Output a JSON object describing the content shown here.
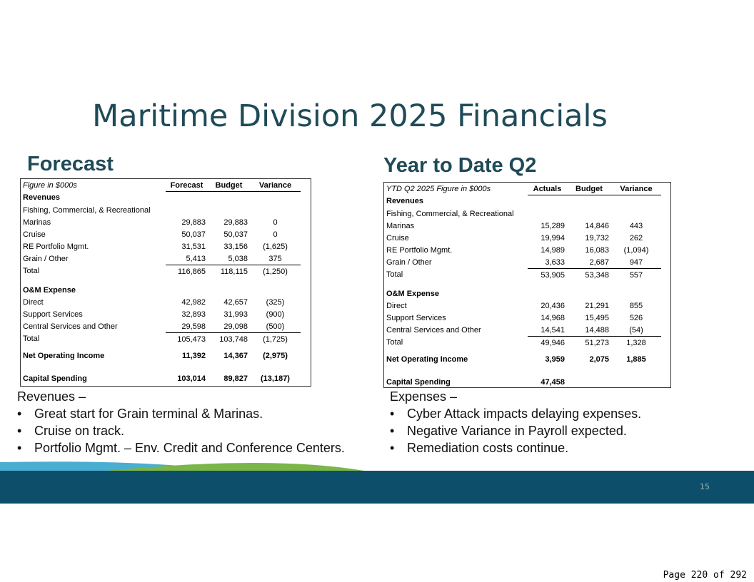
{
  "title": "Maritime Division 2025 Financials",
  "forecast": {
    "heading": "Forecast",
    "table": {
      "rows": [
        [
          "Figure in $000s",
          "Forecast",
          "Budget",
          "Variance"
        ],
        [
          "Revenues"
        ],
        [
          "Fishing, Commercial,  & Recreational"
        ],
        [
          "Marinas",
          "29,883",
          "29,883",
          "0"
        ],
        [
          "Cruise",
          "50,037",
          "50,037",
          "0"
        ],
        [
          "RE Portfolio Mgmt.",
          "31,531",
          "33,156",
          "(1,625)"
        ],
        [
          "Grain / Other",
          "5,413",
          "5,038",
          "375"
        ],
        [
          "Total",
          "116,865",
          "118,115",
          "(1,250)"
        ],
        [
          "O&M Expense"
        ],
        [
          "Direct",
          "42,982",
          "42,657",
          "(325)"
        ],
        [
          "Support Services",
          "32,893",
          "31,993",
          "(900)"
        ],
        [
          "Central Services and Other",
          "29,598",
          "29,098",
          "(500)"
        ],
        [
          "Total",
          "105,473",
          "103,748",
          "(1,725)"
        ],
        [
          "Net Operating Income",
          "11,392",
          "14,367",
          "(2,975)"
        ],
        [
          "Capital Spending",
          "103,014",
          "89,827",
          "(13,187)"
        ]
      ]
    }
  },
  "ytd": {
    "heading": "Year to Date Q2",
    "table": {
      "rows": [
        [
          "YTD Q2 2025 Figure in $000s",
          "Actuals",
          "Budget",
          "Variance"
        ],
        [
          "Revenues"
        ],
        [
          "Fishing, Commercial,  & Recreational"
        ],
        [
          "Marinas",
          "15,289",
          "14,846",
          "443"
        ],
        [
          "Cruise",
          "19,994",
          "19,732",
          "262"
        ],
        [
          "RE Portfolio Mgmt.",
          "14,989",
          "16,083",
          "(1,094)"
        ],
        [
          "Grain / Other",
          "3,633",
          "2,687",
          "947"
        ],
        [
          "Total",
          "53,905",
          "53,348",
          "557"
        ],
        [
          "O&M Expense"
        ],
        [
          "Direct",
          "20,436",
          "21,291",
          "855"
        ],
        [
          "Support Services",
          "14,968",
          "15,495",
          "526"
        ],
        [
          "Central Services and Other",
          "14,541",
          "14,488",
          "(54)"
        ],
        [
          "Total",
          "49,946",
          "51,273",
          "1,328"
        ],
        [
          "Net Operating Income",
          "3,959",
          "2,075",
          "1,885"
        ],
        [
          "Capital Spending",
          "47,458"
        ]
      ]
    }
  },
  "notes_left": {
    "heading": "Revenues –",
    "bullets": [
      "Great start for Grain terminal & Marinas.",
      "Cruise on track.",
      "Portfolio Mgmt. – Env.  Credit and Conference Centers."
    ]
  },
  "notes_right": {
    "heading": "Expenses –",
    "bullets": [
      "Cyber Attack impacts delaying expenses.",
      "Negative Variance in Payroll expected.",
      "Remediation costs continue."
    ]
  },
  "slide_number": "15",
  "page_footer": "Page 220 of 292"
}
